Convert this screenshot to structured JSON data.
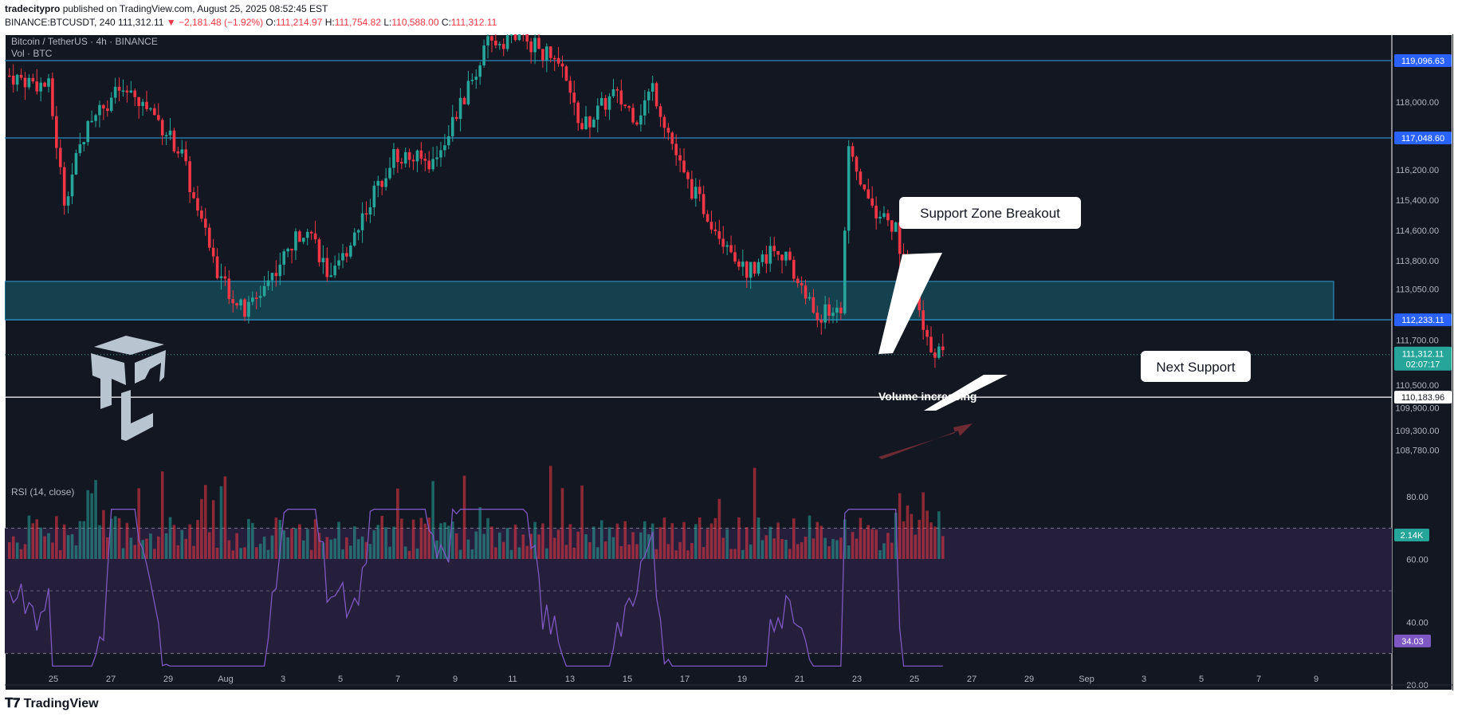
{
  "header": {
    "publisher": "tradecitypro",
    "published_text": "published on TradingView.com, August 25, 2025 08:52:45 EST",
    "symbol": "BINANCE:BTCUSDT, 240",
    "last": "111,312.11",
    "change": "▼ −2,181.48 (−1.92%)",
    "o_label": "O:",
    "o_val": "111,214.97",
    "h_label": "H:",
    "h_val": "111,754.82",
    "l_label": "L:",
    "l_val": "110,588.00",
    "c_label": "C:",
    "c_val": "111,312.11"
  },
  "legend": {
    "title": "Bitcoin / TetherUS · 4h · BINANCE",
    "vol": "Vol · BTC",
    "rsi": "RSI (14, close)"
  },
  "annotations": {
    "support_breakout": "Support Zone Breakout",
    "next_support": "Next Support",
    "volume_increasing": "Volume increasing"
  },
  "footer": {
    "brand": "TradingView"
  },
  "colors": {
    "background": "#131722",
    "up": "#26a69a",
    "down": "#f23645",
    "level_line": "#2a8bbf",
    "zone_fill": "#15414f",
    "rsi_line": "#7e57c2",
    "rsi_band": "#261f3b",
    "white": "#ffffff"
  },
  "chart_data": [
    {
      "type": "candlestick",
      "title": "Bitcoin / TetherUS · 4h · BINANCE",
      "x_ticks": [
        "25",
        "27",
        "29",
        "Aug",
        "3",
        "5",
        "7",
        "9",
        "11",
        "13",
        "15",
        "17",
        "19",
        "21",
        "23",
        "25",
        "27",
        "29",
        "Sep",
        "3",
        "5",
        "7",
        "9"
      ],
      "y_ticks": [
        "118,000.00",
        "116,200.00",
        "115,400.00",
        "114,600.00",
        "113,800.00",
        "113,050.00",
        "111,700.00",
        "110,500.00",
        "109,900.00",
        "109,300.00",
        "108,780.00"
      ],
      "price_labels": [
        "119,096.63",
        "117,048.60",
        "112,233.11",
        "110,183.96",
        "111,312.11"
      ],
      "countdown": "02:07:17",
      "volume_label": "2.14K",
      "horizontal_levels": [
        119096.63,
        117048.6,
        112233.11,
        110183.96
      ],
      "support_zone": [
        112233.11,
        113250
      ],
      "last_price": 111312.11,
      "series": [
        {
          "name": "Vol · BTC"
        }
      ]
    },
    {
      "type": "line",
      "title": "RSI (14, close)",
      "y_ticks": [
        "80.00",
        "60.00",
        "40.00",
        "20.00"
      ],
      "band": [
        30,
        70
      ],
      "last_value": "34.03",
      "ylim": [
        20,
        80
      ]
    }
  ]
}
